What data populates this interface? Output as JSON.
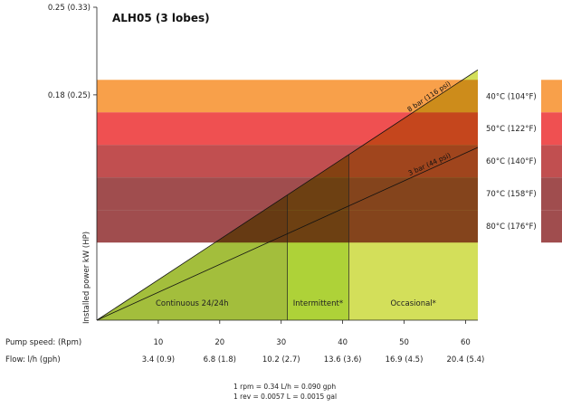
{
  "chart_data": {
    "type": "area",
    "title": "ALH05 (3 lobes)",
    "ylabel": "Installed power kW (HP)",
    "ylim": [
      0,
      0.25
    ],
    "xlim": [
      0,
      62
    ],
    "y_ticks": [
      {
        "value": 0.25,
        "label": "0.25 (0.33)"
      },
      {
        "value": 0.18,
        "label": "0.18 (0.25)"
      }
    ],
    "x_row_labels": {
      "speed": "Pump speed: (Rpm)",
      "flow": "Flow: l/h (gph)"
    },
    "x_ticks": [
      {
        "value": 10,
        "speed": "10",
        "flow": "3.4 (0.9)"
      },
      {
        "value": 20,
        "speed": "20",
        "flow": "6.8 (1.8)"
      },
      {
        "value": 30,
        "speed": "30",
        "flow": "10.2 (2.7)"
      },
      {
        "value": 40,
        "speed": "40",
        "flow": "13.6 (3.6)"
      },
      {
        "value": 50,
        "speed": "50",
        "flow": "16.9 (4.5)"
      },
      {
        "value": 60,
        "speed": "60",
        "flow": "20.4 (5.4)"
      }
    ],
    "zones": [
      {
        "label": "Continuous 24/24h",
        "x_from": 0,
        "x_to": 31,
        "color": "#a3be3c"
      },
      {
        "label": "Intermittent*",
        "x_from": 31,
        "x_to": 41,
        "color": "#aed238"
      },
      {
        "label": "Occasional*",
        "x_from": 41,
        "x_to": 62,
        "color": "#d3df5a"
      }
    ],
    "pressure_lines": [
      {
        "label": "8 bar (116 psi)",
        "points": [
          [
            0,
            0
          ],
          [
            62,
            0.2
          ]
        ]
      },
      {
        "label": "3 bar (44 psi)",
        "points": [
          [
            0,
            0
          ],
          [
            62,
            0.138
          ]
        ]
      }
    ],
    "temperature_bands": [
      {
        "label": "40°C (104°F)",
        "y_from": 0.166,
        "y_to": 0.192,
        "color": "#f8a04a"
      },
      {
        "label": "50°C (122°F)",
        "y_from": 0.14,
        "y_to": 0.166,
        "color": "#ef5051"
      },
      {
        "label": "60°C (140°F)",
        "y_from": 0.114,
        "y_to": 0.14,
        "color": "#c14f50"
      },
      {
        "label": "70°C (158°F)",
        "y_from": 0.088,
        "y_to": 0.114,
        "color": "#a04d4e"
      },
      {
        "label": "80°C (176°F)",
        "y_from": 0.062,
        "y_to": 0.088,
        "color": "#a04d4e"
      }
    ],
    "zone_dividers": [
      31,
      41
    ],
    "notes": [
      "1 rpm  = 0.34 L/h = 0.090 gph",
      "1 rev = 0.0057 L = 0.0015 gal"
    ]
  }
}
